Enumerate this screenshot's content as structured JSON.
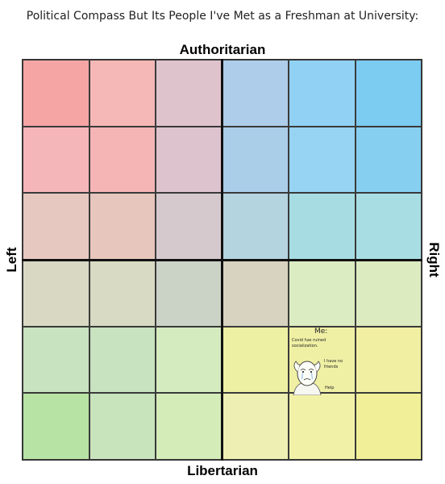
{
  "page": {
    "title": "Political Compass But Its People I've Met as a Freshman at University:"
  },
  "axes": {
    "top": "Authoritarian",
    "bottom": "Libertarian",
    "left": "Left",
    "right": "Right"
  },
  "grid_colors": [
    [
      "#f4a5a4",
      "#f6b8b6",
      "#dfc3cc",
      "#aecdea",
      "#91d2f4",
      "#7ccbf1"
    ],
    [
      "#f5b6b9",
      "#f5b5b5",
      "#ddc3cd",
      "#aacde8",
      "#97d3f2",
      "#87cff0"
    ],
    [
      "#e6c8c0",
      "#e7c6bd",
      "#d6c9ce",
      "#b4d4e0",
      "#a8dce3",
      "#a8dde3"
    ],
    [
      "#d9d8c3",
      "#d8dac3",
      "#cbd2c6",
      "#d8d3c0",
      "#dcecc2",
      "#dcebc0"
    ],
    [
      "#c8e3c0",
      "#c8e3bf",
      "#d4ebc0",
      "#edf0a3",
      "#f0f0a5",
      "#f1efa2"
    ],
    [
      "#b7e4a5",
      "#c8e4bd",
      "#d4ecb8",
      "#edf0b2",
      "#f1f2a8",
      "#f1f098"
    ]
  ],
  "me_note": {
    "title": "Me:",
    "line1": "Covid has ruined",
    "line2": "socialization.",
    "line3": "I have no",
    "line4": "friends",
    "line5": "Help"
  }
}
